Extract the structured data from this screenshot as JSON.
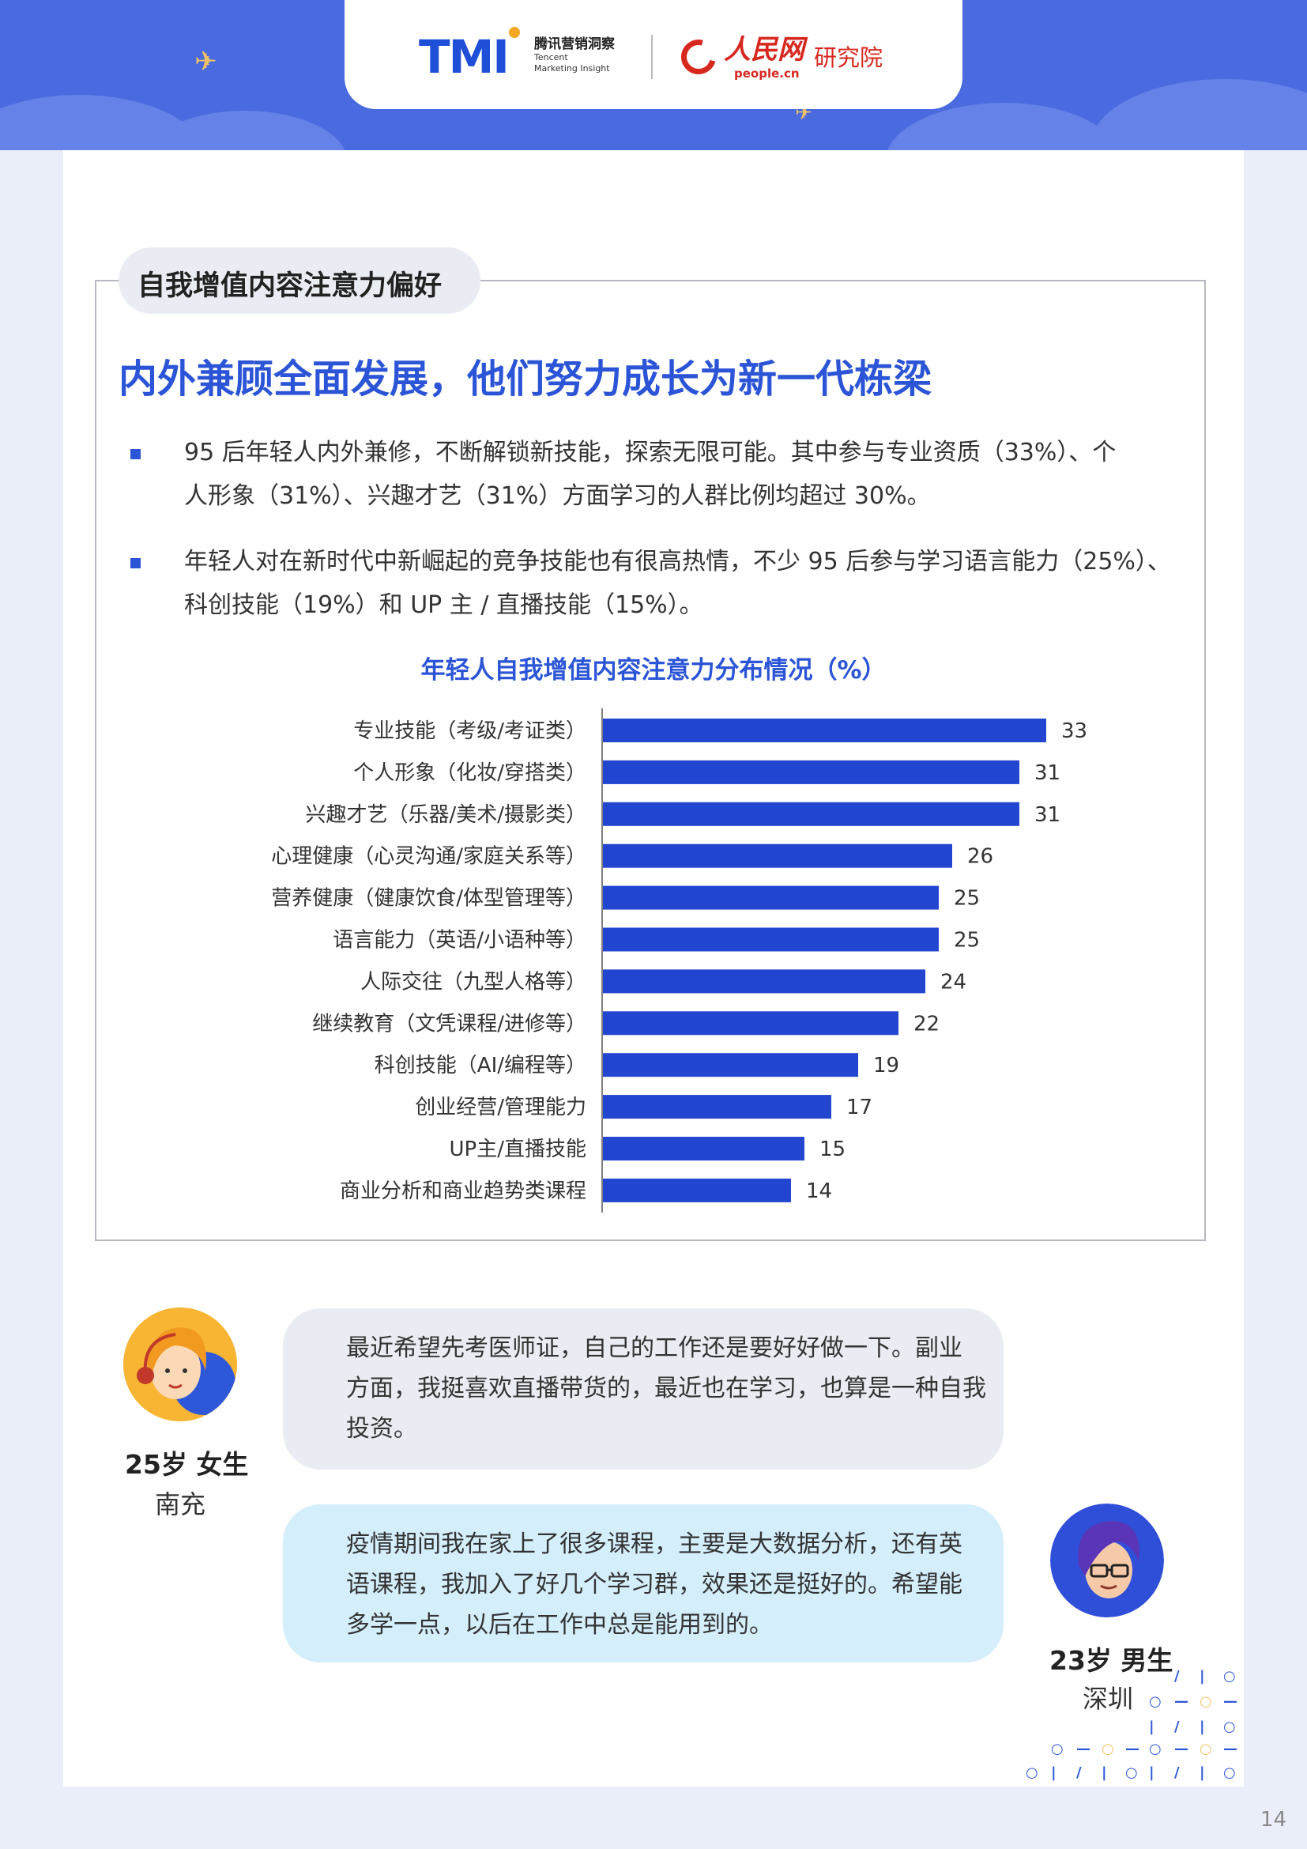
{
  "header": {
    "tmi_mark": "TMI",
    "tmi_cn": "腾讯营销洞察",
    "tmi_en_1": "Tencent",
    "tmi_en_2": "Marketing Insight",
    "people_cn": "人民网",
    "people_en": "people.cn",
    "people_inst": "研究院"
  },
  "section": {
    "tag": "自我增值内容注意力偏好",
    "headline": "内外兼顾全面发展，他们努力成长为新一代栋梁",
    "bullets": [
      {
        "line1": "95 后年轻人内外兼修，不断解锁新技能，探索无限可能。其中参与专业资质（33%）、个",
        "line2": "人形象（31%）、兴趣才艺（31%）方面学习的人群比例均超过 30%。"
      },
      {
        "line1": "年轻人对在新时代中新崛起的竞争技能也有很高热情，不少 95 后参与学习语言能力（25%）、",
        "line2": "科创技能（19%）和 UP 主 / 直播技能（15%）。"
      }
    ]
  },
  "chart_data": {
    "type": "bar",
    "orientation": "horizontal",
    "title": "年轻人自我增值内容注意力分布情况（%）",
    "categories": [
      "专业技能（考级/考证类）",
      "个人形象（化妆/穿搭类）",
      "兴趣才艺（乐器/美术/摄影类）",
      "心理健康（心灵沟通/家庭关系等）",
      "营养健康（健康饮食/体型管理等）",
      "语言能力（英语/小语种等）",
      "人际交往（九型人格等）",
      "继续教育（文凭课程/进修等）",
      "科创技能（AI/编程等）",
      "创业经营/管理能力",
      "UP主/直播技能",
      "商业分析和商业趋势类课程"
    ],
    "values": [
      33,
      31,
      31,
      26,
      25,
      25,
      24,
      22,
      19,
      17,
      15,
      14
    ],
    "xlim": [
      0,
      35
    ],
    "bar_color": "#2346d0",
    "grid": false
  },
  "quotes": [
    {
      "name": "25岁 女生",
      "city": "南充",
      "line1": "最近希望先考医师证，自己的工作还是要好好做一下。副业",
      "line2": "方面，我挺喜欢直播带货的，最近也在学习，也算是一种自我",
      "line3": "投资。"
    },
    {
      "name": "23岁 男生",
      "city": "深圳",
      "line1": "疫情期间我在家上了很多课程，主要是大数据分析，还有英",
      "line2": "语课程，我加入了好几个学习群，效果还是挺好的。希望能",
      "line3": "多学一点，以后在工作中总是能用到的。"
    }
  ],
  "page_number": "14"
}
